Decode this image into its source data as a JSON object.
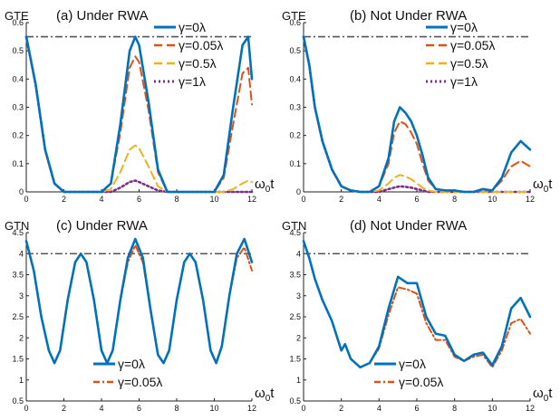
{
  "colors": {
    "blue": "#0072BD",
    "orange": "#D95319",
    "yellow": "#EDB120",
    "purple": "#7E2F8E",
    "reference": "#555555"
  },
  "chart_data": [
    {
      "type": "line",
      "title": "(a) Under RWA",
      "ylabel": "GTE",
      "xlabel": "ω₀t",
      "xlim": [
        0,
        12
      ],
      "ylim": [
        0,
        0.6
      ],
      "xticks": [
        0,
        2,
        4,
        6,
        8,
        10,
        12
      ],
      "yticks": [
        0,
        0.1,
        0.2,
        0.3,
        0.4,
        0.5,
        0.6
      ],
      "reference_line": 0.55,
      "legend_position": "top-right",
      "series": [
        {
          "name": "γ=0λ",
          "color": "#0072BD",
          "style": "solid",
          "x": [
            0,
            0.5,
            1,
            1.5,
            2,
            2.5,
            3,
            3.5,
            4,
            4.5,
            5,
            5.5,
            5.8,
            6,
            6.5,
            7,
            7.5,
            8,
            8.5,
            9,
            9.5,
            10,
            10.5,
            11,
            11.5,
            11.8,
            12
          ],
          "y": [
            0.55,
            0.38,
            0.15,
            0.03,
            0.0,
            0.0,
            0.0,
            0.0,
            0.0,
            0.03,
            0.24,
            0.5,
            0.55,
            0.52,
            0.32,
            0.08,
            0.0,
            0.0,
            0.0,
            0.0,
            0.0,
            0.0,
            0.06,
            0.3,
            0.52,
            0.55,
            0.4
          ]
        },
        {
          "name": "γ=0.05λ",
          "color": "#D95319",
          "style": "dashed",
          "x": [
            0,
            0.5,
            1,
            1.5,
            2,
            2.5,
            3,
            3.5,
            4,
            4.5,
            5,
            5.5,
            5.8,
            6,
            6.5,
            7,
            7.5,
            8,
            8.5,
            9,
            9.5,
            10,
            10.5,
            11,
            11.5,
            11.8,
            12
          ],
          "y": [
            0.55,
            0.38,
            0.15,
            0.03,
            0.0,
            0.0,
            0.0,
            0.0,
            0.0,
            0.03,
            0.21,
            0.44,
            0.48,
            0.46,
            0.29,
            0.07,
            0.0,
            0.0,
            0.0,
            0.0,
            0.0,
            0.0,
            0.05,
            0.24,
            0.42,
            0.44,
            0.31
          ]
        },
        {
          "name": "γ=0.5λ",
          "color": "#EDB120",
          "style": "dashed",
          "x": [
            0,
            0.5,
            1,
            1.5,
            2,
            2.5,
            3,
            3.5,
            4,
            4.5,
            5,
            5.5,
            5.8,
            6,
            6.5,
            7,
            7.5,
            8,
            8.5,
            9,
            9.5,
            10,
            10.5,
            11,
            11.5,
            11.8,
            12
          ],
          "y": [
            0.55,
            0.38,
            0.15,
            0.03,
            0.0,
            0.0,
            0.0,
            0.0,
            0.0,
            0.01,
            0.07,
            0.15,
            0.165,
            0.155,
            0.09,
            0.02,
            0.0,
            0.0,
            0.0,
            0.0,
            0.0,
            0.0,
            0.0,
            0.01,
            0.03,
            0.04,
            0.035
          ]
        },
        {
          "name": "γ=1λ",
          "color": "#7E2F8E",
          "style": "dotted",
          "x": [
            0,
            0.5,
            1,
            1.5,
            2,
            2.5,
            3,
            3.5,
            4,
            4.5,
            5,
            5.5,
            5.8,
            6,
            6.5,
            7,
            7.5,
            8,
            8.5,
            9,
            9.5,
            10,
            10.5,
            11,
            11.5,
            11.8,
            12
          ],
          "y": [
            0.55,
            0.38,
            0.15,
            0.03,
            0.0,
            0.0,
            0.0,
            0.0,
            0.0,
            0.0,
            0.015,
            0.035,
            0.04,
            0.035,
            0.02,
            0.005,
            0.0,
            0.0,
            0.0,
            0.0,
            0.0,
            0.0,
            0.0,
            0.0,
            0.0,
            0.0,
            0.0
          ]
        }
      ]
    },
    {
      "type": "line",
      "title": "(b) Not Under RWA",
      "ylabel": "GTE",
      "xlabel": "ω₀t",
      "xlim": [
        0,
        12
      ],
      "ylim": [
        0,
        0.6
      ],
      "xticks": [
        0,
        2,
        4,
        6,
        8,
        10,
        12
      ],
      "yticks": [
        0,
        0.1,
        0.2,
        0.3,
        0.4,
        0.5,
        0.6
      ],
      "reference_line": 0.55,
      "legend_position": "top-right",
      "series": [
        {
          "name": "γ=0λ",
          "color": "#0072BD",
          "style": "solid",
          "x": [
            0,
            0.3,
            0.6,
            1,
            1.5,
            2,
            2.5,
            3,
            3.5,
            4,
            4.5,
            4.8,
            5.1,
            5.4,
            5.7,
            6,
            6.3,
            6.6,
            7,
            7.5,
            8,
            8.5,
            9,
            9.5,
            10,
            10.5,
            11,
            11.5,
            12
          ],
          "y": [
            0.55,
            0.45,
            0.3,
            0.18,
            0.08,
            0.02,
            0.005,
            0.0,
            0.0,
            0.02,
            0.12,
            0.25,
            0.3,
            0.28,
            0.25,
            0.2,
            0.13,
            0.05,
            0.01,
            0.005,
            0.005,
            0.0,
            0.0,
            0.01,
            0.005,
            0.05,
            0.14,
            0.18,
            0.15
          ]
        },
        {
          "name": "γ=0.05λ",
          "color": "#D95319",
          "style": "dashed",
          "x": [
            0,
            0.3,
            0.6,
            1,
            1.5,
            2,
            2.5,
            3,
            3.5,
            4,
            4.5,
            4.8,
            5.1,
            5.4,
            5.7,
            6,
            6.3,
            6.6,
            7,
            7.5,
            8,
            8.5,
            9,
            9.5,
            10,
            10.5,
            11,
            11.5,
            12
          ],
          "y": [
            0.55,
            0.45,
            0.3,
            0.18,
            0.08,
            0.02,
            0.005,
            0.0,
            0.0,
            0.02,
            0.1,
            0.21,
            0.25,
            0.24,
            0.21,
            0.17,
            0.1,
            0.04,
            0.01,
            0.005,
            0.005,
            0.0,
            0.0,
            0.005,
            0.005,
            0.04,
            0.09,
            0.11,
            0.09
          ]
        },
        {
          "name": "γ=0.5λ",
          "color": "#EDB120",
          "style": "dashed",
          "x": [
            0,
            0.3,
            0.6,
            1,
            1.5,
            2,
            2.5,
            3,
            3.5,
            4,
            4.5,
            4.8,
            5.1,
            5.4,
            5.7,
            6,
            6.3,
            6.6,
            7,
            7.5,
            8,
            8.5,
            9,
            9.5,
            10,
            10.5,
            11,
            11.5,
            12
          ],
          "y": [
            0.55,
            0.45,
            0.3,
            0.18,
            0.08,
            0.02,
            0.005,
            0.0,
            0.0,
            0.005,
            0.03,
            0.05,
            0.06,
            0.055,
            0.045,
            0.03,
            0.015,
            0.005,
            0.0,
            0.0,
            0.0,
            0.0,
            0.0,
            0.0,
            0.0,
            0.0,
            0.0,
            0.0,
            0.0
          ]
        },
        {
          "name": "γ=1λ",
          "color": "#7E2F8E",
          "style": "dotted",
          "x": [
            0,
            0.3,
            0.6,
            1,
            1.5,
            2,
            2.5,
            3,
            3.5,
            4,
            4.5,
            4.8,
            5.1,
            5.4,
            5.7,
            6,
            6.3,
            6.6,
            7,
            7.5,
            8,
            8.5,
            9,
            9.5,
            10,
            10.5,
            11,
            11.5,
            12
          ],
          "y": [
            0.55,
            0.45,
            0.3,
            0.18,
            0.08,
            0.02,
            0.005,
            0.0,
            0.0,
            0.0,
            0.01,
            0.015,
            0.02,
            0.018,
            0.015,
            0.01,
            0.005,
            0.0,
            0.0,
            0.0,
            0.0,
            0.0,
            0.0,
            0.0,
            0.0,
            0.0,
            0.0,
            0.0,
            0.0
          ]
        }
      ]
    },
    {
      "type": "line",
      "title": "(c) Under RWA",
      "ylabel": "GTN",
      "xlabel": "ω₀t",
      "xlim": [
        0,
        12
      ],
      "ylim": [
        0.5,
        4.5
      ],
      "xticks": [
        0,
        2,
        4,
        6,
        8,
        10,
        12
      ],
      "yticks": [
        0.5,
        1,
        1.5,
        2,
        2.5,
        3,
        3.5,
        4,
        4.5
      ],
      "reference_line": 4.0,
      "legend_position": "bottom-center",
      "series": [
        {
          "name": "γ=0λ",
          "color": "#0072BD",
          "style": "solid",
          "x": [
            0,
            0.4,
            0.8,
            1.2,
            1.5,
            1.8,
            2.2,
            2.6,
            2.9,
            3.2,
            3.6,
            4.0,
            4.3,
            4.6,
            5.0,
            5.4,
            5.8,
            6.2,
            6.6,
            7.0,
            7.3,
            7.6,
            8.0,
            8.4,
            8.7,
            9.0,
            9.4,
            9.8,
            10.1,
            10.4,
            10.8,
            11.2,
            11.6,
            12
          ],
          "y": [
            4.3,
            3.6,
            2.5,
            1.7,
            1.4,
            1.7,
            2.9,
            3.8,
            4.0,
            3.8,
            2.9,
            1.7,
            1.4,
            1.7,
            2.9,
            3.9,
            4.35,
            3.9,
            2.7,
            1.6,
            1.4,
            1.7,
            2.9,
            3.8,
            4.0,
            3.8,
            2.9,
            1.7,
            1.4,
            1.8,
            3.0,
            4.0,
            4.35,
            3.8
          ]
        },
        {
          "name": "γ=0.05λ",
          "color": "#D95319",
          "style": "dashdot",
          "x": [
            0,
            0.4,
            0.8,
            1.2,
            1.5,
            1.8,
            2.2,
            2.6,
            2.9,
            3.2,
            3.6,
            4.0,
            4.3,
            4.6,
            5.0,
            5.4,
            5.8,
            6.2,
            6.6,
            7.0,
            7.3,
            7.6,
            8.0,
            8.4,
            8.7,
            9.0,
            9.4,
            9.8,
            10.1,
            10.4,
            10.8,
            11.2,
            11.6,
            12
          ],
          "y": [
            4.3,
            3.6,
            2.5,
            1.7,
            1.4,
            1.7,
            2.9,
            3.8,
            4.0,
            3.8,
            2.9,
            1.7,
            1.4,
            1.7,
            2.9,
            3.8,
            4.2,
            3.8,
            2.7,
            1.6,
            1.4,
            1.7,
            2.9,
            3.8,
            4.0,
            3.8,
            2.9,
            1.7,
            1.4,
            1.8,
            3.0,
            3.9,
            4.15,
            3.6
          ]
        }
      ]
    },
    {
      "type": "line",
      "title": "(d) Not Under RWA",
      "ylabel": "GTN",
      "xlabel": "ω₀t",
      "xlim": [
        0,
        12
      ],
      "ylim": [
        0.5,
        4.5
      ],
      "xticks": [
        0,
        2,
        4,
        6,
        8,
        10,
        12
      ],
      "yticks": [
        0.5,
        1,
        1.5,
        2,
        2.5,
        3,
        3.5,
        4,
        4.5
      ],
      "reference_line": 4.0,
      "legend_position": "bottom-right",
      "series": [
        {
          "name": "γ=0λ",
          "color": "#0072BD",
          "style": "solid",
          "x": [
            0,
            0.3,
            0.6,
            1,
            1.5,
            2,
            2.2,
            2.5,
            3,
            3.5,
            4,
            4.5,
            5,
            5.5,
            6,
            6.5,
            7,
            7.5,
            8,
            8.5,
            9,
            9.5,
            10,
            10.5,
            11,
            11.5,
            12
          ],
          "y": [
            4.3,
            3.9,
            3.4,
            2.9,
            2.4,
            1.7,
            1.85,
            1.5,
            1.3,
            1.4,
            1.8,
            2.7,
            3.45,
            3.3,
            3.3,
            2.5,
            2.1,
            2.05,
            1.6,
            1.45,
            1.6,
            1.65,
            1.35,
            1.8,
            2.7,
            2.95,
            2.5
          ]
        },
        {
          "name": "γ=0.05λ",
          "color": "#D95319",
          "style": "dashdot",
          "x": [
            0,
            0.3,
            0.6,
            1,
            1.5,
            2,
            2.2,
            2.5,
            3,
            3.5,
            4,
            4.5,
            5,
            5.5,
            6,
            6.5,
            7,
            7.5,
            8,
            8.5,
            9,
            9.5,
            10,
            10.5,
            11,
            11.5,
            12
          ],
          "y": [
            4.3,
            3.9,
            3.4,
            2.9,
            2.4,
            1.7,
            1.85,
            1.5,
            1.3,
            1.4,
            1.75,
            2.55,
            3.2,
            3.15,
            3.05,
            2.35,
            1.95,
            1.95,
            1.55,
            1.45,
            1.55,
            1.6,
            1.3,
            1.7,
            2.35,
            2.45,
            2.1
          ]
        }
      ]
    }
  ]
}
